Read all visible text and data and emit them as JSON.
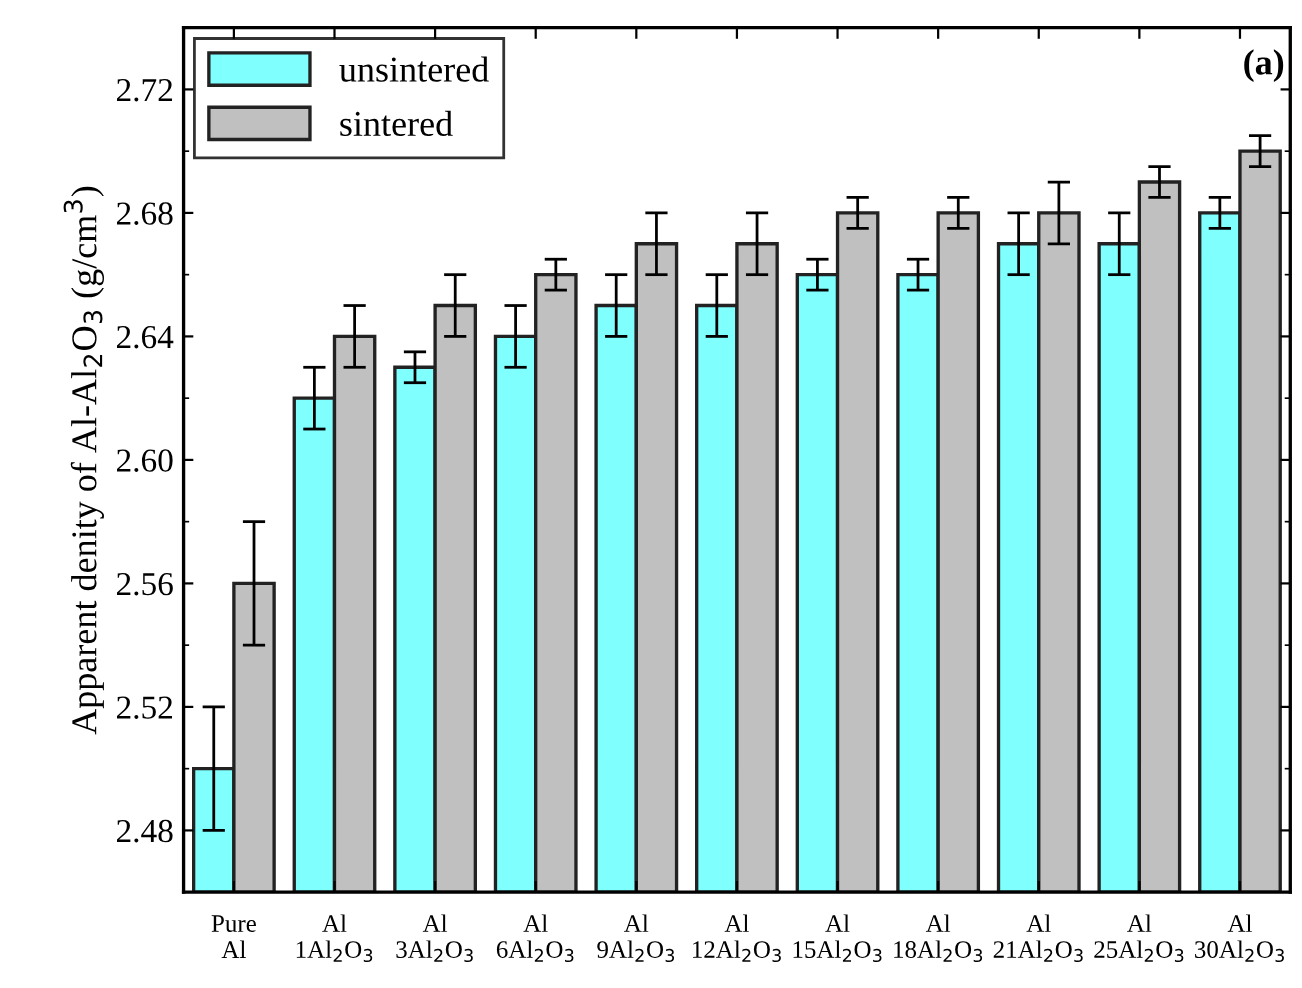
{
  "chart_data": {
    "type": "bar",
    "ylabel": "Apparent denity of Al-Al$_{2}$O$_{3}$ (g/cm$^{3}$)",
    "categories": [
      "Pure\nAl",
      "Al\n1Al$_{2}$O$_{3}$",
      "Al\n3Al$_{2}$O$_{3}$",
      "Al\n6Al$_{2}$O$_{3}$",
      "Al\n9Al$_{2}$O$_{3}$",
      "Al\n12Al$_{2}$O$_{3}$",
      "Al\n15Al$_{2}$O$_{3}$",
      "Al\n18Al$_{2}$O$_{3}$",
      "Al\n21Al$_{2}$O$_{3}$",
      "Al\n25Al$_{2}$O$_{3}$",
      "Al\n30Al$_{2}$O$_{3}$"
    ],
    "series": [
      {
        "name": "unsintered",
        "color": "#80ffff",
        "values": [
          2.5,
          2.62,
          2.63,
          2.64,
          2.65,
          2.65,
          2.66,
          2.66,
          2.67,
          2.67,
          2.68
        ],
        "errors": [
          0.02,
          0.01,
          0.005,
          0.01,
          0.01,
          0.01,
          0.005,
          0.005,
          0.01,
          0.01,
          0.005
        ]
      },
      {
        "name": "sintered",
        "color": "#c0c0c0",
        "values": [
          2.56,
          2.64,
          2.65,
          2.66,
          2.67,
          2.67,
          2.68,
          2.68,
          2.68,
          2.69,
          2.7
        ],
        "errors": [
          0.02,
          0.01,
          0.01,
          0.005,
          0.01,
          0.01,
          0.005,
          0.005,
          0.01,
          0.005,
          0.005
        ]
      }
    ],
    "ylim": [
      2.46,
      2.74
    ],
    "yticks": [
      2.48,
      2.52,
      2.56,
      {
        "value": 2.6,
        "label": "2.60"
      },
      2.64,
      2.68,
      2.72
    ],
    "annotations": [
      "(a)"
    ],
    "legend": "top left",
    "grid": false
  }
}
